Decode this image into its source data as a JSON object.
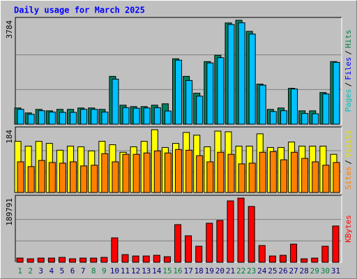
{
  "chart_data": [
    {
      "type": "bar",
      "title": "Daily usage for March 2025",
      "ylim": [
        0,
        3784
      ],
      "yticks": [
        3784
      ],
      "legend": [
        {
          "label": "Pages",
          "color": "#00c0c0"
        },
        {
          "label": "Files",
          "color": "#0000ff"
        },
        {
          "label": "Hits",
          "color": "#008040"
        }
      ],
      "legend_separator": "/",
      "series": [
        {
          "color": "#008060",
          "values": [
            589,
            410,
            538,
            486,
            538,
            538,
            589,
            589,
            538,
            1741,
            691,
            640,
            640,
            691,
            742,
            2381,
            1741,
            1126,
            2278,
            2509,
            3686,
            3784,
            3379,
            1459,
            538,
            589,
            1306,
            486,
            486,
            1152,
            2278
          ]
        },
        {
          "color": "#00c0ff",
          "values": [
            540,
            360,
            490,
            440,
            430,
            430,
            540,
            540,
            440,
            1640,
            600,
            580,
            590,
            600,
            480,
            2330,
            1590,
            1020,
            2230,
            2420,
            3630,
            3690,
            3280,
            1420,
            460,
            490,
            1280,
            390,
            380,
            1100,
            2250
          ]
        }
      ]
    },
    {
      "type": "bar",
      "ylim": [
        0,
        184
      ],
      "yticks": [
        184
      ],
      "legend": [
        {
          "label": "Sites",
          "color": "#ff8000"
        },
        {
          "label": "Visits",
          "color": "#e0e000"
        }
      ],
      "legend_separator": "/",
      "series": [
        {
          "color": "#ffff00",
          "values": [
            150,
            136,
            150,
            144,
            124,
            136,
            134,
            122,
            150,
            140,
            118,
            134,
            150,
            184,
            132,
            144,
            176,
            168,
            134,
            180,
            178,
            136,
            136,
            172,
            132,
            132,
            148,
            136,
            136,
            136,
            112
          ]
        },
        {
          "color": "#ff8000",
          "values": [
            90,
            76,
            94,
            88,
            86,
            90,
            78,
            80,
            114,
            90,
            112,
            112,
            116,
            122,
            116,
            126,
            124,
            108,
            90,
            118,
            112,
            84,
            86,
            118,
            120,
            96,
            118,
            100,
            90,
            80,
            88
          ]
        }
      ]
    },
    {
      "type": "bar",
      "ylim": [
        0,
        189791
      ],
      "yticks": [
        189791
      ],
      "legend": [
        {
          "label": "KBytes",
          "color": "#ff0000"
        }
      ],
      "series": [
        {
          "color": "#ff0000",
          "values": [
            12378,
            10315,
            12378,
            12378,
            14441,
            10315,
            12378,
            12378,
            14441,
            72205,
            22693,
            18567,
            18567,
            20630,
            16504,
            111402,
            78394,
            47449,
            115528,
            123780,
            181544,
            189791,
            165040,
            49512,
            18567,
            20630,
            53638,
            10315,
            12378,
            47449,
            107276
          ]
        }
      ],
      "categories": [
        "1",
        "2",
        "3",
        "4",
        "5",
        "6",
        "7",
        "8",
        "9",
        "10",
        "11",
        "12",
        "13",
        "14",
        "15",
        "16",
        "17",
        "18",
        "19",
        "20",
        "21",
        "22",
        "23",
        "24",
        "25",
        "26",
        "27",
        "28",
        "29",
        "30",
        "31"
      ],
      "category_colors": [
        "#008040",
        "#008040",
        "#000080",
        "#000080",
        "#000080",
        "#000080",
        "#000080",
        "#008040",
        "#008040",
        "#000080",
        "#000080",
        "#000080",
        "#000080",
        "#000080",
        "#008040",
        "#008040",
        "#000080",
        "#000080",
        "#000080",
        "#000080",
        "#000080",
        "#008040",
        "#008040",
        "#000080",
        "#000080",
        "#000080",
        "#000080",
        "#000080",
        "#008040",
        "#008040",
        "#000080"
      ]
    }
  ]
}
